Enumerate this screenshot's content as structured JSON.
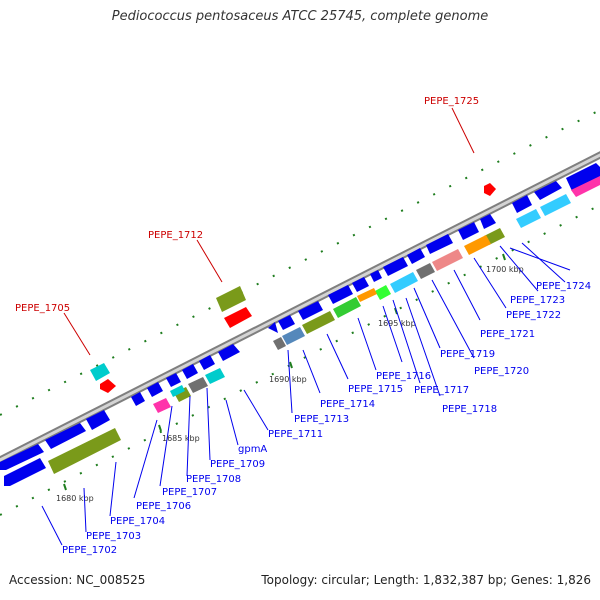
{
  "title": "Pediococcus pentosaceus ATCC 25745, complete genome",
  "accession": "Accession: NC_008525",
  "summary": "Topology: circular; Length: 1,832,387 bp; Genes: 1,826",
  "colors": {
    "backbone": "#a6a6a6",
    "forward_gene": "#0000ee",
    "red_gene": "#ff0000",
    "label_blue": "#0000ee",
    "label_red": "#cc0000",
    "tick_green": "#1e7d1e"
  },
  "scale_ticks": [
    "1680 kbp",
    "1685 kbp",
    "1690 kbp",
    "1695 kbp",
    "1700 kbp"
  ],
  "top_labels": [
    "PEPE_1705",
    "PEPE_1712",
    "PEPE_1725"
  ],
  "bottom_labels": [
    "PEPE_1702",
    "PEPE_1703",
    "PEPE_1704",
    "PEPE_1706",
    "PEPE_1707",
    "PEPE_1708",
    "PEPE_1709",
    "gpmA",
    "PEPE_1711",
    "PEPE_1713",
    "PEPE_1714",
    "PEPE_1715",
    "PEPE_1716",
    "PEPE_1717",
    "PEPE_1718",
    "PEPE_1719",
    "PEPE_1720",
    "PEPE_1721",
    "PEPE_1722",
    "PEPE_1723",
    "PEPE_1724"
  ]
}
